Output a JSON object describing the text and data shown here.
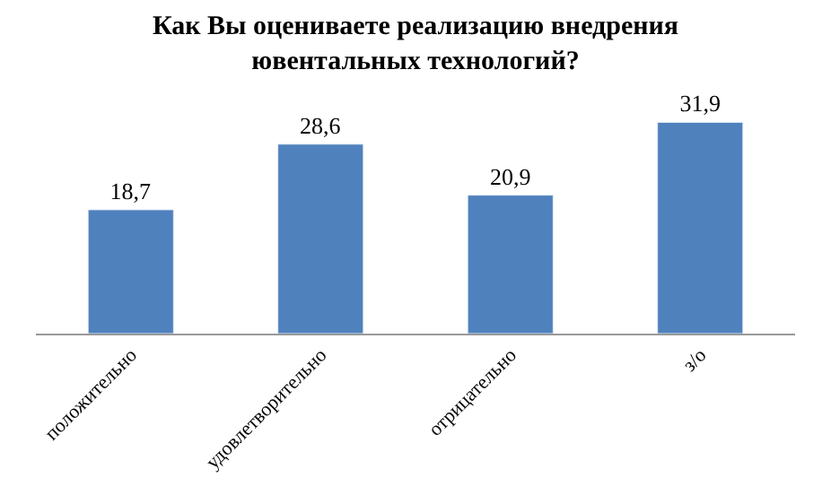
{
  "chart_data": {
    "type": "bar",
    "title": "Как Вы оцениваете реализацию внедрения\nювентальных технологий?",
    "categories": [
      "положительно",
      "удовлетворительно",
      "отрицательно",
      "з/о"
    ],
    "values": [
      18.7,
      28.6,
      20.9,
      31.9
    ],
    "value_labels": [
      "18,7",
      "28,6",
      "20,9",
      "31,9"
    ],
    "color": "#4f81bd"
  }
}
